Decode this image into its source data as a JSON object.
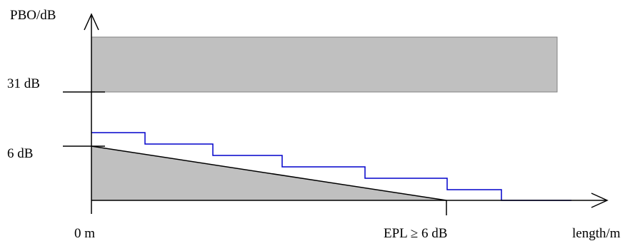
{
  "labels": {
    "y_axis": "PBO/dB",
    "x_axis": "length/m",
    "y_tick_upper": "31 dB",
    "y_tick_lower": "6 dB",
    "x_tick_origin": "0 m",
    "x_tick_epl": "EPL ≥ 6 dB"
  },
  "colors": {
    "region_fill": "#c0c0c0",
    "region_edge": "#808080",
    "step_line": "#0000cc",
    "axis": "#000000"
  }
}
